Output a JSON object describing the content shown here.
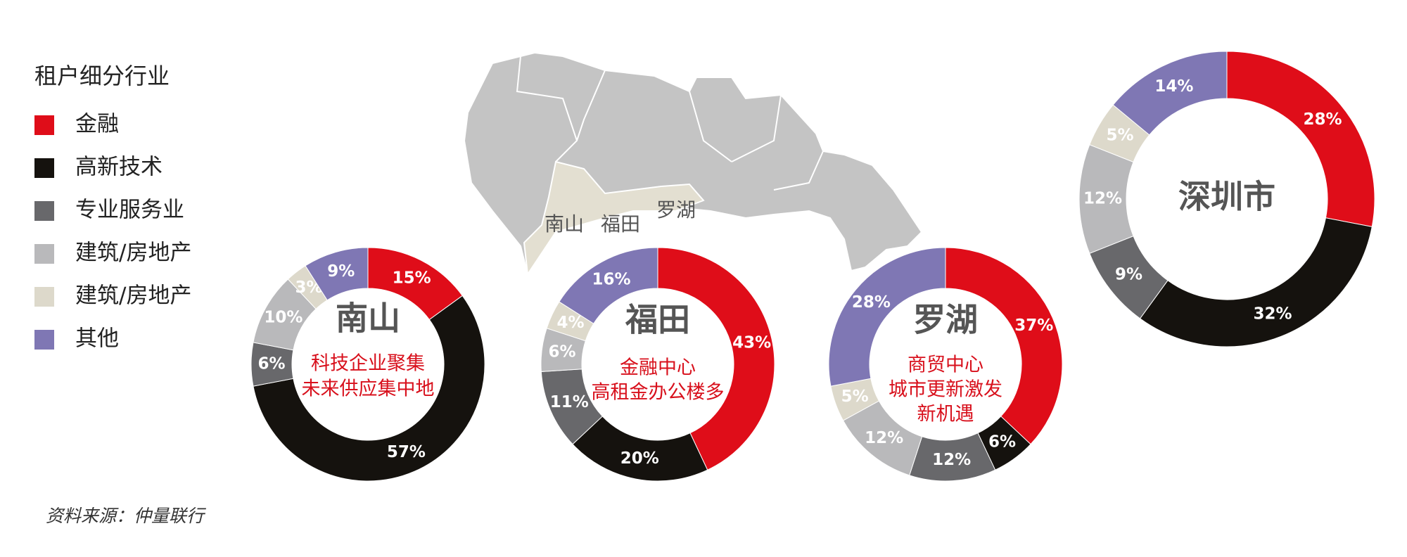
{
  "legend_title": "租户细分行业",
  "map": {
    "labels": [
      "南山",
      "福田",
      "罗湖"
    ]
  },
  "source": "资料来源：仲量联行",
  "chart_data": [
    {
      "type": "pie",
      "title": "南山",
      "center_lines": [
        "科技企业聚集",
        "未来供应集中地"
      ],
      "categories": [
        "金融",
        "高新技术",
        "专业服务业",
        "建筑/房地产",
        "建筑/房地产",
        "其他"
      ],
      "colors": [
        "#df0d19",
        "#15120e",
        "#68686b",
        "#b9b9bb",
        "#ddd9cb",
        "#7f77b4"
      ],
      "values": [
        15,
        57,
        6,
        10,
        3,
        9
      ],
      "value_labels": [
        "15%",
        "57%",
        "6%",
        "10%",
        "3%",
        "9%"
      ]
    },
    {
      "type": "pie",
      "title": "福田",
      "center_lines": [
        "金融中心",
        "高租金办公楼多"
      ],
      "categories": [
        "金融",
        "高新技术",
        "专业服务业",
        "建筑/房地产",
        "建筑/房地产",
        "其他"
      ],
      "colors": [
        "#df0d19",
        "#15120e",
        "#68686b",
        "#b9b9bb",
        "#ddd9cb",
        "#7f77b4"
      ],
      "values": [
        43,
        20,
        11,
        6,
        4,
        16
      ],
      "value_labels": [
        "43%",
        "20%",
        "11%",
        "6%",
        "4%",
        "16%"
      ]
    },
    {
      "type": "pie",
      "title": "罗湖",
      "center_lines": [
        "商贸中心",
        "城市更新激发",
        "新机遇"
      ],
      "categories": [
        "金融",
        "高新技术",
        "专业服务业",
        "建筑/房地产",
        "建筑/房地产",
        "其他"
      ],
      "colors": [
        "#df0d19",
        "#15120e",
        "#68686b",
        "#b9b9bb",
        "#ddd9cb",
        "#7f77b4"
      ],
      "values": [
        37,
        6,
        12,
        12,
        5,
        28
      ],
      "value_labels": [
        "37%",
        "6%",
        "12%",
        "12%",
        "5%",
        "28%"
      ]
    },
    {
      "type": "pie",
      "title": "深圳市",
      "center_lines": [],
      "categories": [
        "金融",
        "高新技术",
        "专业服务业",
        "建筑/房地产",
        "建筑/房地产",
        "其他"
      ],
      "colors": [
        "#df0d19",
        "#15120e",
        "#68686b",
        "#b9b9bb",
        "#ddd9cb",
        "#7f77b4"
      ],
      "values": [
        28,
        32,
        9,
        12,
        5,
        14
      ],
      "value_labels": [
        "28%",
        "32%",
        "9%",
        "12%",
        "5%",
        "14%"
      ]
    }
  ]
}
